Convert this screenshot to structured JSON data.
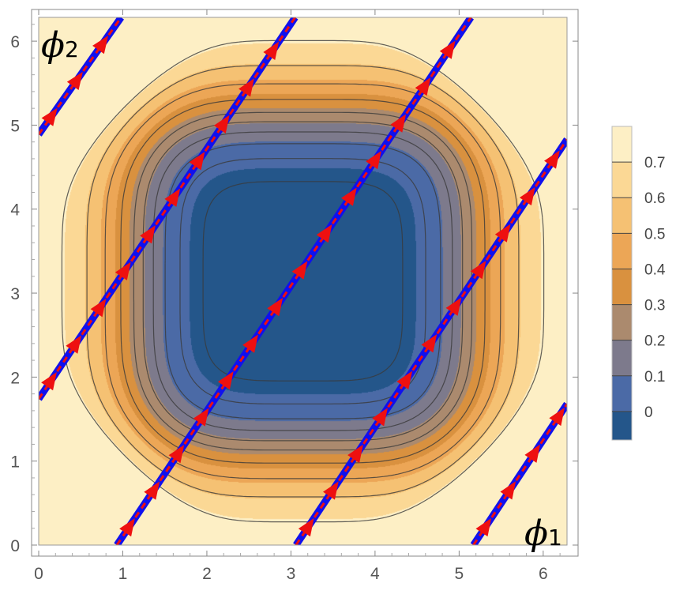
{
  "chart_data": {
    "type": "contour",
    "title": "",
    "xlabel": "",
    "ylabel": "",
    "xlim": [
      0,
      6.2832
    ],
    "ylim": [
      0,
      6.2832
    ],
    "x_ticks": [
      "0",
      "1",
      "2",
      "3",
      "4",
      "5",
      "6"
    ],
    "y_ticks": [
      "0",
      "1",
      "2",
      "3",
      "4",
      "5",
      "6"
    ],
    "annotations": {
      "x_axis_symbol": "ϕ",
      "x_axis_sub": "1",
      "y_axis_symbol": "ϕ",
      "y_axis_sub": "2"
    },
    "colorbar": {
      "ticks": [
        "0",
        "0.1",
        "0.2",
        "0.3",
        "0.4",
        "0.5",
        "0.6",
        "0.7"
      ],
      "levels": [
        0,
        0.1,
        0.2,
        0.3,
        0.4,
        0.5,
        0.6,
        0.7
      ],
      "range": [
        -0.08,
        0.8
      ],
      "colors": [
        "#24568a",
        "#4b6aa6",
        "#7d7a8c",
        "#ab8a6e",
        "#d9913f",
        "#eca656",
        "#f5c173",
        "#fbd895",
        "#fdefc5"
      ]
    },
    "contour_line_levels": [
      -0.03,
      0.03,
      0.09,
      0.15,
      0.21,
      0.27,
      0.36,
      0.47,
      0.59,
      0.71
    ],
    "flow_lines": [
      {
        "name": "",
        "x": [
          0,
          0.98
        ],
        "y": [
          4.89,
          6.2832
        ]
      },
      {
        "name": "",
        "x": [
          0,
          3.05
        ],
        "y": [
          1.74,
          6.2832
        ]
      },
      {
        "name": "",
        "x": [
          0.93,
          5.14
        ],
        "y": [
          0,
          6.2832
        ]
      },
      {
        "name": "",
        "x": [
          3.06,
          6.2832
        ],
        "y": [
          0,
          4.83
        ]
      },
      {
        "name": "",
        "x": [
          5.17,
          6.2832
        ],
        "y": [
          0,
          1.68
        ]
      }
    ],
    "colors": {
      "flow_line": "#1010ee",
      "arrow": "#ee1010",
      "contour_line": "#3a3a3a"
    }
  }
}
